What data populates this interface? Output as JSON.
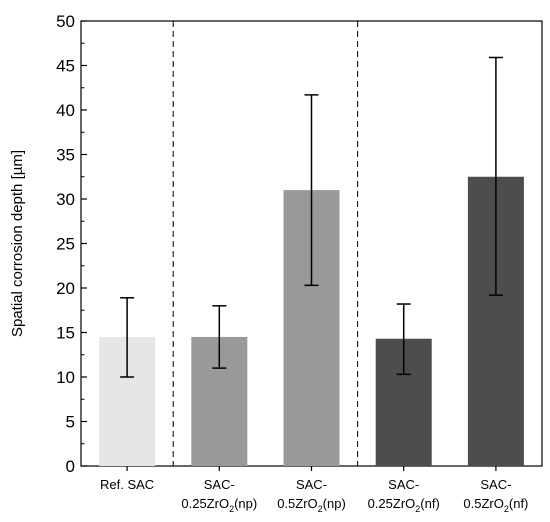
{
  "chart_data": {
    "type": "bar",
    "ylabel": "Spatial corrosion depth [µm]",
    "xlabel": "",
    "ylim": [
      0,
      50
    ],
    "y_ticks": [
      "0",
      "5",
      "10",
      "15",
      "20",
      "25",
      "30",
      "35",
      "40",
      "45",
      "50"
    ],
    "categories": [
      {
        "line1": "Ref. SAC",
        "line2": "",
        "formula": null
      },
      {
        "line1": "SAC-",
        "line2": "",
        "formula": {
          "pre": "0.25ZrO",
          "sub": "2",
          "post": "(np)"
        }
      },
      {
        "line1": "SAC-",
        "line2": "",
        "formula": {
          "pre": "0.5ZrO",
          "sub": "2",
          "post": "(np)"
        }
      },
      {
        "line1": "SAC-",
        "line2": "",
        "formula": {
          "pre": "0.25ZrO",
          "sub": "2",
          "post": "(nf)"
        }
      },
      {
        "line1": "SAC-",
        "line2": "",
        "formula": {
          "pre": "0.5ZrO",
          "sub": "2",
          "post": "(nf)"
        }
      }
    ],
    "values": [
      14.5,
      14.5,
      31.0,
      14.3,
      32.5
    ],
    "error_low": [
      10.0,
      11.0,
      20.3,
      10.3,
      19.2
    ],
    "error_high": [
      18.9,
      18.0,
      41.7,
      18.2,
      45.9
    ],
    "colors": [
      "#e6e6e6",
      "#999999",
      "#999999",
      "#4d4d4d",
      "#4d4d4d"
    ],
    "group_separators_after": [
      0,
      2
    ],
    "grid": false
  }
}
